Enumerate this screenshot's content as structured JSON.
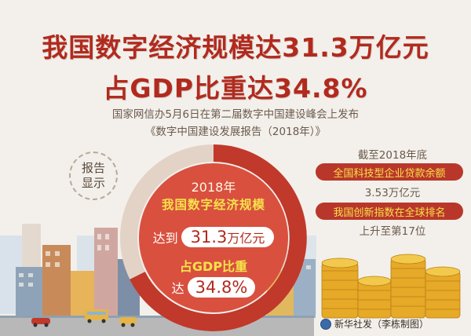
{
  "title": {
    "line1": "我国数字经济规模达31.3万亿元",
    "line2": "占GDP比重达34.8%"
  },
  "subtitle": {
    "line1": "国家网信办5月6日在第二届数字中国建设峰会上发布",
    "line2": "《数字中国建设发展报告（2018年）》"
  },
  "badge": {
    "line1": "报告",
    "line2": "显示"
  },
  "donut": {
    "year": "2018年",
    "scale_label": "我国数字经济规模",
    "reach_prefix": "达到",
    "scale_value": "31.3",
    "scale_unit": "万亿元",
    "gdp_label": "占GDP比重",
    "ratio_prefix": "达",
    "ratio_value": "34.8%"
  },
  "info": {
    "line1": "截至2018年底",
    "line2": "全国科技型企业贷款余额",
    "line3": "3.53万亿元",
    "line4": "我国创新指数在全球排名",
    "line5": "上升至第17位"
  },
  "credit": "新华社发（李栋制图）",
  "colors": {
    "title_red": "#b22a1e",
    "donut_red": "#c0392b",
    "pill_red": "#b9372a",
    "highlight_yellow": "#f7e24a",
    "background": "#f3f0eb"
  },
  "icons": {
    "credit": "xinhua-logo-icon"
  }
}
